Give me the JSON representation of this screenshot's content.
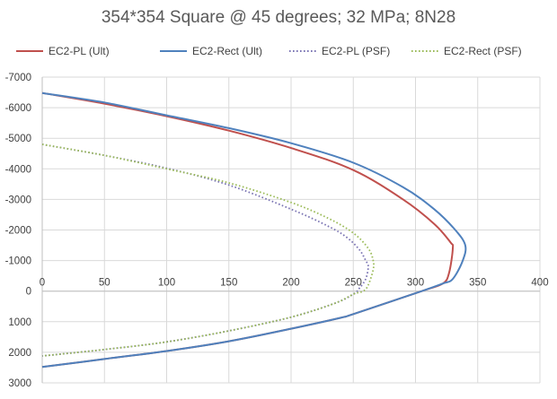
{
  "chart_data": {
    "type": "line",
    "title": "354*354 Square @ 45 degrees; 32 MPa; 8N28",
    "xlabel": "",
    "ylabel": "",
    "xlim": [
      0,
      400
    ],
    "ylim": [
      -7000,
      3000
    ],
    "y_inverted": true,
    "x_axis_at_y": 0,
    "grid": true,
    "legend_position": "top",
    "xticks": [
      "0",
      "50",
      "100",
      "150",
      "200",
      "250",
      "300",
      "350",
      "400"
    ],
    "yticks": [
      "-7000",
      "-6000",
      "-5000",
      "-4000",
      "-3000",
      "-2000",
      "-1000",
      "0",
      "1000",
      "2000",
      "3000"
    ],
    "series": [
      {
        "name": "EC2-PL (Ult)",
        "color": "#c0504d",
        "dash": "solid",
        "points": [
          [
            0,
            -6480
          ],
          [
            50,
            -6130
          ],
          [
            100,
            -5720
          ],
          [
            150,
            -5250
          ],
          [
            200,
            -4680
          ],
          [
            250,
            -3960
          ],
          [
            290,
            -3000
          ],
          [
            315,
            -2200
          ],
          [
            328,
            -1600
          ],
          [
            330,
            -1400
          ],
          [
            327,
            -600
          ],
          [
            322,
            -250
          ],
          [
            305,
            0
          ],
          [
            250,
            750
          ],
          [
            240,
            870
          ],
          [
            200,
            1230
          ],
          [
            150,
            1640
          ],
          [
            100,
            1960
          ],
          [
            50,
            2220
          ],
          [
            0,
            2480
          ]
        ]
      },
      {
        "name": "EC2-Rect (Ult)",
        "color": "#4f81bd",
        "dash": "solid",
        "points": [
          [
            0,
            -6480
          ],
          [
            50,
            -6170
          ],
          [
            100,
            -5750
          ],
          [
            150,
            -5330
          ],
          [
            200,
            -4840
          ],
          [
            250,
            -4200
          ],
          [
            290,
            -3400
          ],
          [
            315,
            -2680
          ],
          [
            332,
            -2000
          ],
          [
            340,
            -1500
          ],
          [
            338,
            -1000
          ],
          [
            330,
            -400
          ],
          [
            322,
            -250
          ],
          [
            305,
            0
          ],
          [
            250,
            750
          ],
          [
            240,
            870
          ],
          [
            200,
            1230
          ],
          [
            150,
            1640
          ],
          [
            100,
            1960
          ],
          [
            50,
            2220
          ],
          [
            0,
            2480
          ]
        ]
      },
      {
        "name": "EC2-PL (PSF)",
        "color": "#7a74b3",
        "dash": "dotted",
        "points": [
          [
            0,
            -4800
          ],
          [
            50,
            -4440
          ],
          [
            100,
            -4020
          ],
          [
            150,
            -3470
          ],
          [
            200,
            -2680
          ],
          [
            230,
            -2120
          ],
          [
            245,
            -1750
          ],
          [
            255,
            -1350
          ],
          [
            260,
            -1000
          ],
          [
            262,
            -800
          ],
          [
            260,
            -400
          ],
          [
            255,
            -100
          ],
          [
            250,
            100
          ],
          [
            235,
            400
          ],
          [
            200,
            850
          ],
          [
            150,
            1300
          ],
          [
            100,
            1660
          ],
          [
            50,
            1910
          ],
          [
            0,
            2120
          ]
        ]
      },
      {
        "name": "EC2-Rect (PSF)",
        "color": "#9bbb59",
        "dash": "dotted",
        "points": [
          [
            0,
            -4800
          ],
          [
            50,
            -4440
          ],
          [
            100,
            -4000
          ],
          [
            150,
            -3540
          ],
          [
            200,
            -2900
          ],
          [
            230,
            -2380
          ],
          [
            250,
            -1900
          ],
          [
            262,
            -1400
          ],
          [
            266,
            -1000
          ],
          [
            266,
            -700
          ],
          [
            262,
            -200
          ],
          [
            258,
            0
          ],
          [
            250,
            100
          ],
          [
            235,
            400
          ],
          [
            200,
            850
          ],
          [
            150,
            1300
          ],
          [
            100,
            1660
          ],
          [
            50,
            1910
          ],
          [
            0,
            2120
          ]
        ]
      }
    ]
  }
}
